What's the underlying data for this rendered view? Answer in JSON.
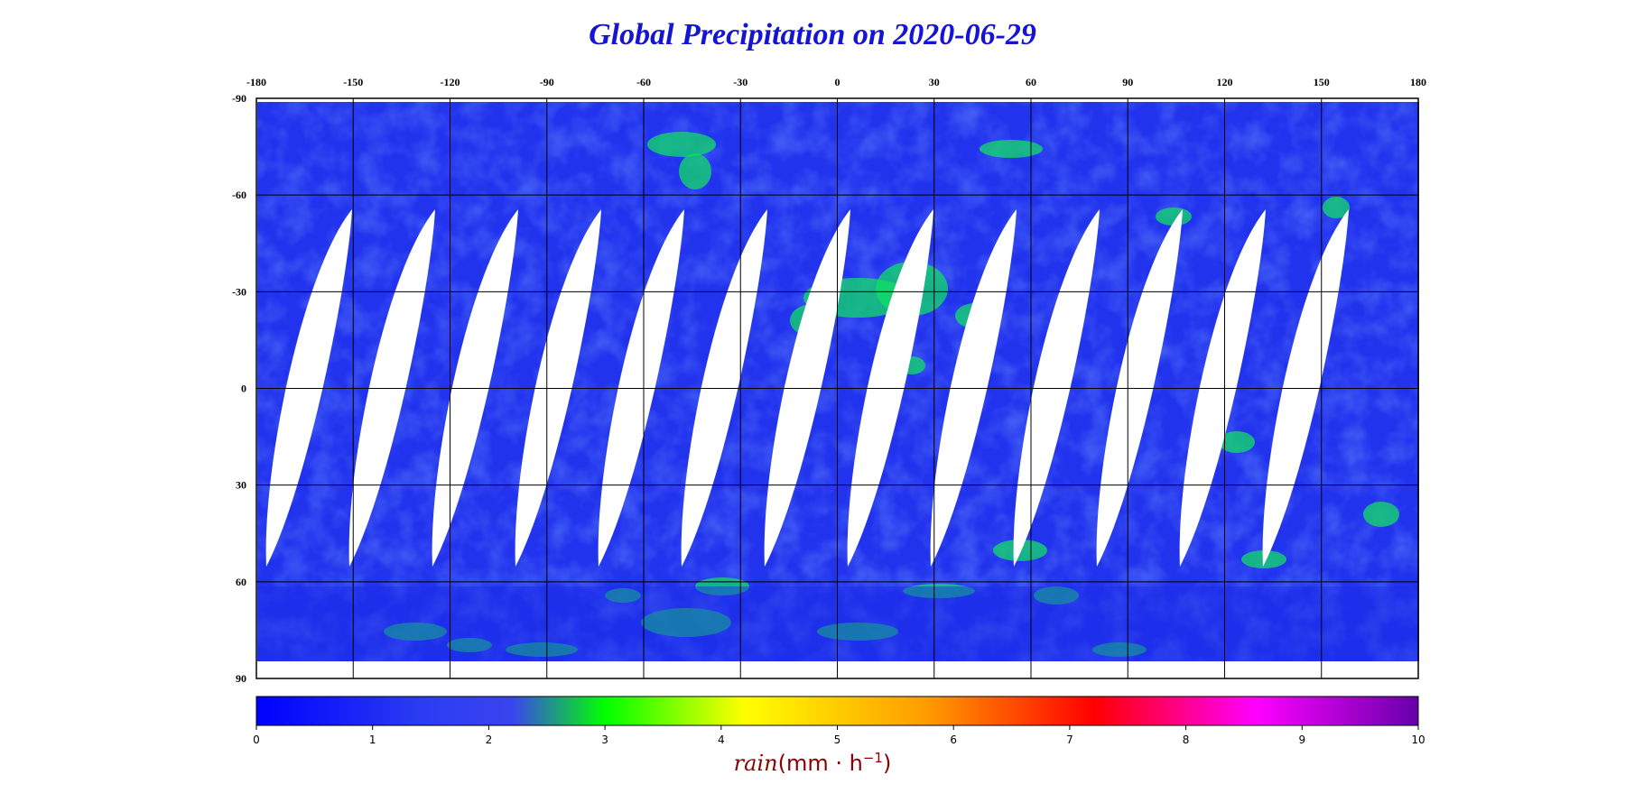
{
  "chart_data": {
    "type": "heatmap",
    "title": "Global Precipitation on 2020-06-29",
    "x_ticks": [
      "-180",
      "-150",
      "-120",
      "-90",
      "-60",
      "-30",
      "0",
      "30",
      "60",
      "90",
      "120",
      "150",
      "180"
    ],
    "y_ticks": [
      "-90",
      "-60",
      "-30",
      "0",
      "30",
      "60",
      "90"
    ],
    "xlim": [
      -180,
      180
    ],
    "ylim": [
      -90,
      90
    ],
    "y_inverted": true,
    "grid": true,
    "colorbar": {
      "ticks": [
        "0",
        "1",
        "2",
        "3",
        "4",
        "5",
        "6",
        "7",
        "8",
        "9",
        "10"
      ],
      "range": [
        0,
        10
      ],
      "label_prefix": "rain",
      "label_units": "(mm · h",
      "label_exp": "−1",
      "label_suffix": ")",
      "colors": [
        "#0000ff",
        "#2a3cf2",
        "#3a44f0",
        "#00ff00",
        "#ffff00",
        "#ff9900",
        "#ff0000",
        "#ff00ff",
        "#6600aa"
      ]
    },
    "ocean_color": "#2233ee",
    "rain_color": "#11dd66",
    "no_data_color": "#ffffff"
  }
}
